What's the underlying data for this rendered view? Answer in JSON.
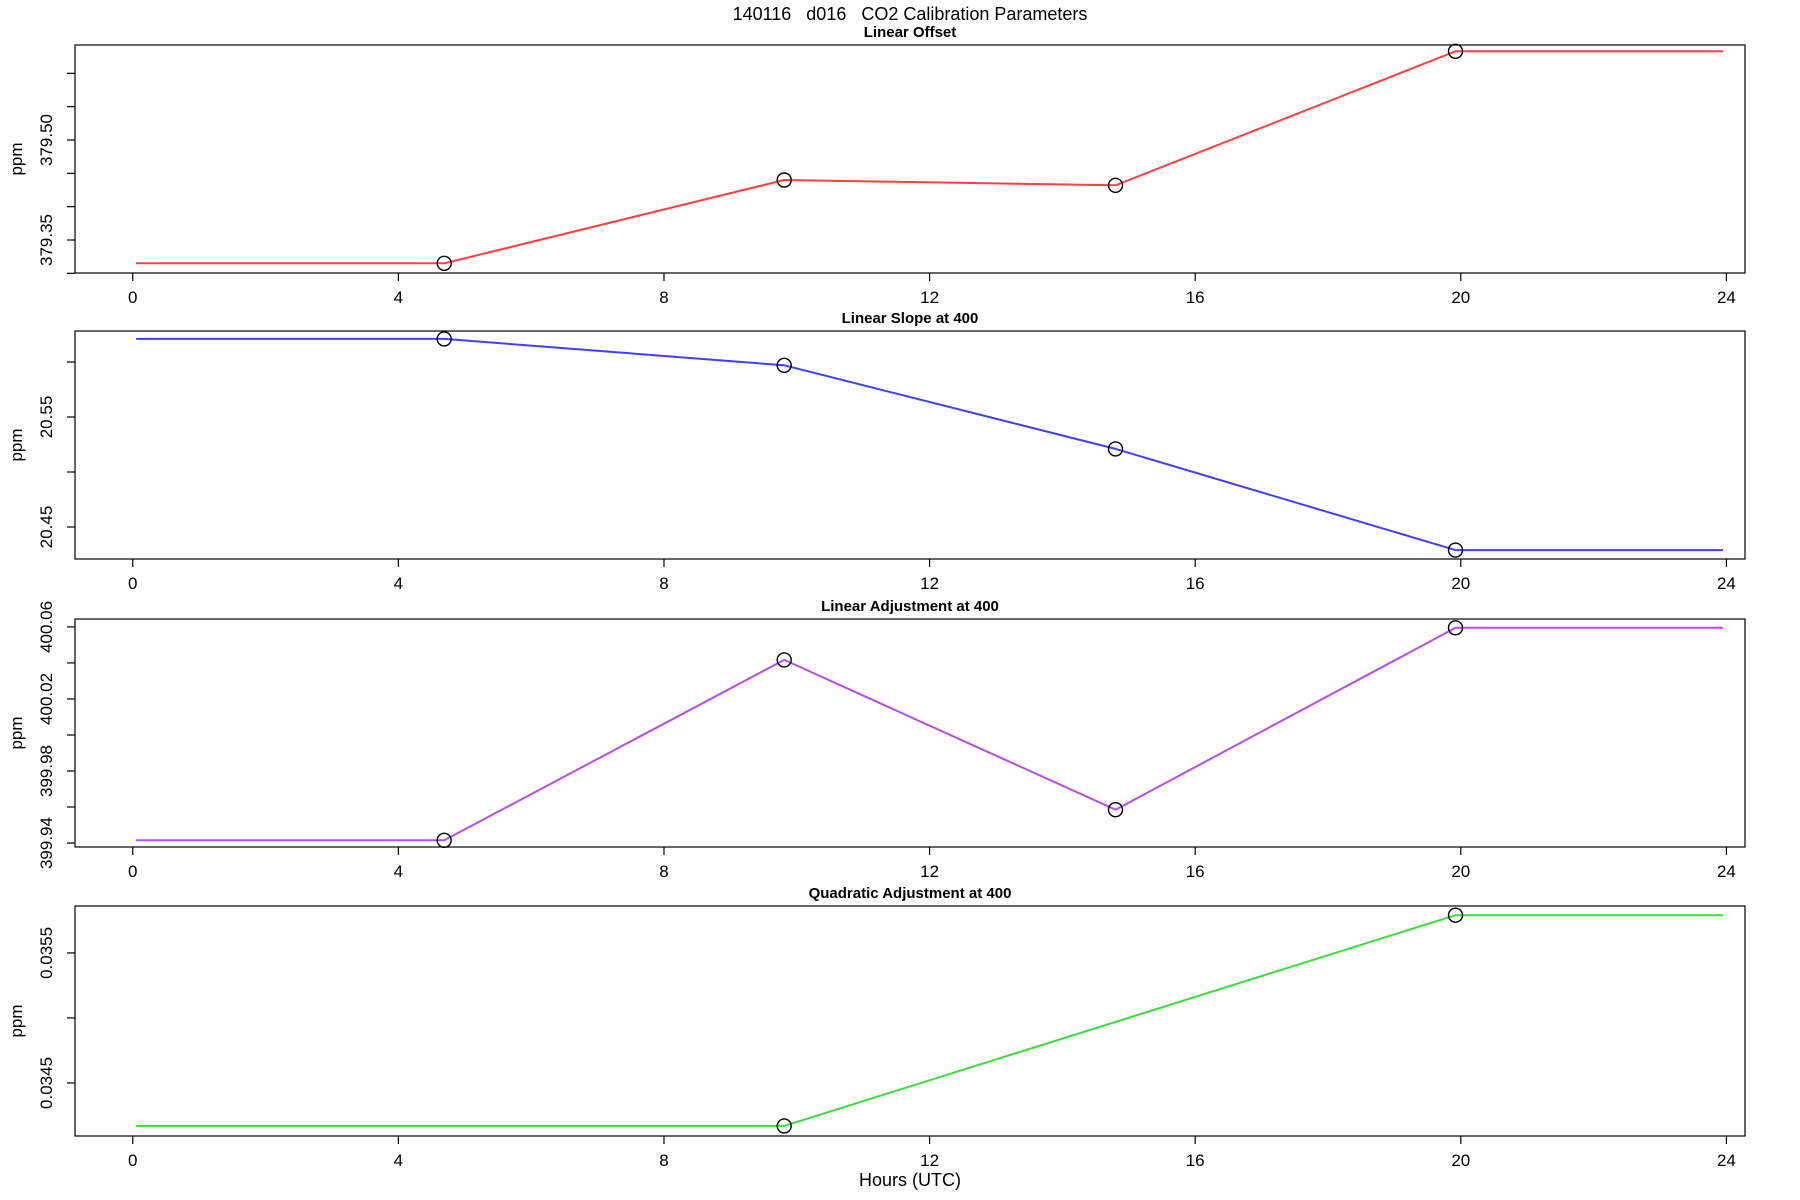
{
  "title": "140116   d016   CO2 Calibration Parameters",
  "xlabel": "Hours (UTC)",
  "chart_data": [
    {
      "type": "line",
      "title": "Linear Offset",
      "ylabel": "ppm",
      "color": "#ff4040",
      "xlim": [
        -0.87,
        24.28
      ],
      "ylim": [
        379.3005,
        379.6425
      ],
      "xticks": [
        0,
        4,
        8,
        12,
        16,
        20,
        24
      ],
      "yticks": [
        {
          "v": 379.3,
          "label": ""
        },
        {
          "v": 379.35,
          "label": "379.35"
        },
        {
          "v": 379.4,
          "label": ""
        },
        {
          "v": 379.45,
          "label": ""
        },
        {
          "v": 379.5,
          "label": "379.50"
        },
        {
          "v": 379.55,
          "label": ""
        },
        {
          "v": 379.6,
          "label": ""
        }
      ],
      "line": [
        [
          0.05,
          379.315
        ],
        [
          4.69,
          379.315
        ],
        [
          9.81,
          379.44
        ],
        [
          14.8,
          379.432
        ],
        [
          19.92,
          379.633
        ],
        [
          23.95,
          379.633
        ]
      ],
      "markers": [
        [
          4.69,
          379.315
        ],
        [
          9.81,
          379.44
        ],
        [
          14.8,
          379.432
        ],
        [
          19.92,
          379.633
        ]
      ],
      "grid": false,
      "legend": "none"
    },
    {
      "type": "line",
      "title": "Linear Slope at 400",
      "ylabel": "ppm",
      "color": "#4040ff",
      "xlim": [
        -0.87,
        24.28
      ],
      "ylim": [
        20.4209,
        20.6282
      ],
      "xticks": [
        0,
        4,
        8,
        12,
        16,
        20,
        24
      ],
      "yticks": [
        {
          "v": 20.45,
          "label": "20.45"
        },
        {
          "v": 20.5,
          "label": ""
        },
        {
          "v": 20.55,
          "label": "20.55"
        },
        {
          "v": 20.6,
          "label": ""
        }
      ],
      "line": [
        [
          0.05,
          20.621
        ],
        [
          4.69,
          20.621
        ],
        [
          9.81,
          20.597
        ],
        [
          14.8,
          20.521
        ],
        [
          19.92,
          20.429
        ],
        [
          23.95,
          20.429
        ]
      ],
      "markers": [
        [
          4.69,
          20.621
        ],
        [
          9.81,
          20.597
        ],
        [
          14.8,
          20.521
        ],
        [
          19.92,
          20.429
        ]
      ],
      "grid": false,
      "legend": "none"
    },
    {
      "type": "line",
      "title": "Linear Adjustment at 400",
      "ylabel": "ppm",
      "color": "#b84ce8",
      "xlim": [
        -0.87,
        24.28
      ],
      "ylim": [
        399.9378,
        400.0644
      ],
      "xticks": [
        0,
        4,
        8,
        12,
        16,
        20,
        24
      ],
      "yticks": [
        {
          "v": 399.94,
          "label": "399.94"
        },
        {
          "v": 399.96,
          "label": ""
        },
        {
          "v": 399.98,
          "label": "399.98"
        },
        {
          "v": 400.0,
          "label": ""
        },
        {
          "v": 400.02,
          "label": "400.02"
        },
        {
          "v": 400.04,
          "label": ""
        },
        {
          "v": 400.06,
          "label": "400.06"
        }
      ],
      "line": [
        [
          0.05,
          399.9415
        ],
        [
          4.69,
          399.9415
        ],
        [
          9.81,
          400.0417
        ],
        [
          14.8,
          399.9585
        ],
        [
          19.92,
          400.0595
        ],
        [
          23.95,
          400.0595
        ]
      ],
      "markers": [
        [
          4.69,
          399.9415
        ],
        [
          9.81,
          400.0417
        ],
        [
          14.8,
          399.9585
        ],
        [
          19.92,
          400.0595
        ]
      ],
      "grid": false,
      "legend": "none"
    },
    {
      "type": "line",
      "title": "Quadratic Adjustment at 400",
      "ylabel": "ppm",
      "color": "#3bdc3b",
      "xlim": [
        -0.87,
        24.28
      ],
      "ylim": [
        0.034092,
        0.035861
      ],
      "xticks": [
        0,
        4,
        8,
        12,
        16,
        20,
        24
      ],
      "yticks": [
        {
          "v": 0.0345,
          "label": "0.0345"
        },
        {
          "v": 0.035,
          "label": ""
        },
        {
          "v": 0.0355,
          "label": "0.0355"
        }
      ],
      "line": [
        [
          0.05,
          0.03417
        ],
        [
          9.81,
          0.03417
        ],
        [
          19.92,
          0.03579
        ],
        [
          23.95,
          0.03579
        ]
      ],
      "markers": [
        [
          9.81,
          0.03417
        ],
        [
          19.92,
          0.03579
        ]
      ],
      "grid": false,
      "legend": "none"
    }
  ]
}
